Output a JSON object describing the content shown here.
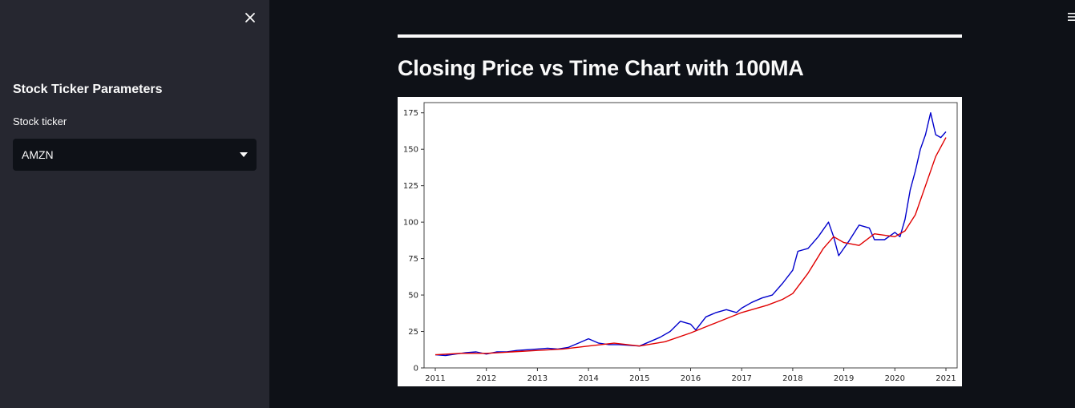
{
  "sidebar": {
    "heading": "Stock Ticker Parameters",
    "ticker_label": "Stock ticker",
    "ticker_value": "AMZN",
    "close_icon": "close-icon",
    "dropdown_icon": "caret-down-icon"
  },
  "header": {
    "menu_icon": "hamburger-icon"
  },
  "main": {
    "title": "Closing Price vs Time Chart with 100MA"
  },
  "colors": {
    "background": "#0e1117",
    "sidebar": "#262730",
    "close_series": "#0000cc",
    "ma_series": "#e00000"
  },
  "chart_data": {
    "type": "line",
    "title": "",
    "xlabel": "",
    "ylabel": "",
    "xlim": [
      2010.78,
      2021.22
    ],
    "ylim": [
      0,
      182
    ],
    "xticks": [
      2011,
      2012,
      2013,
      2014,
      2015,
      2016,
      2017,
      2018,
      2019,
      2020,
      2021
    ],
    "yticks": [
      0,
      25,
      50,
      75,
      100,
      125,
      150,
      175
    ],
    "grid": false,
    "legend": "none",
    "series": [
      {
        "color": "#0000cc",
        "x": [
          2011.0,
          2011.2,
          2011.4,
          2011.6,
          2011.8,
          2012.0,
          2012.2,
          2012.4,
          2012.6,
          2012.8,
          2013.0,
          2013.2,
          2013.4,
          2013.6,
          2013.8,
          2014.0,
          2014.2,
          2014.4,
          2014.6,
          2014.8,
          2015.0,
          2015.2,
          2015.4,
          2015.6,
          2015.8,
          2016.0,
          2016.1,
          2016.3,
          2016.5,
          2016.7,
          2016.9,
          2017.0,
          2017.2,
          2017.4,
          2017.6,
          2017.8,
          2018.0,
          2018.1,
          2018.3,
          2018.5,
          2018.7,
          2018.8,
          2018.9,
          2019.0,
          2019.1,
          2019.3,
          2019.5,
          2019.6,
          2019.8,
          2020.0,
          2020.1,
          2020.2,
          2020.3,
          2020.4,
          2020.5,
          2020.6,
          2020.7,
          2020.8,
          2020.9,
          2021.0
        ],
        "y": [
          9,
          8.5,
          9.5,
          10.5,
          11,
          9.5,
          11,
          11,
          12,
          12.5,
          13,
          13.5,
          13,
          14,
          17,
          20,
          17,
          16,
          16,
          15.5,
          15,
          18,
          21,
          25,
          32,
          30,
          26,
          35,
          38,
          40,
          38,
          41,
          45,
          48,
          50,
          58,
          67,
          80,
          82,
          90,
          100,
          90,
          77,
          82,
          87,
          98,
          96,
          88,
          88,
          93,
          90,
          102,
          122,
          135,
          150,
          160,
          175,
          160,
          158,
          162
        ]
      },
      {
        "color": "#e00000",
        "x": [
          2011.0,
          2011.5,
          2012.0,
          2012.5,
          2013.0,
          2013.5,
          2014.0,
          2014.5,
          2015.0,
          2015.5,
          2016.0,
          2016.5,
          2017.0,
          2017.5,
          2017.8,
          2018.0,
          2018.3,
          2018.6,
          2018.8,
          2019.0,
          2019.3,
          2019.6,
          2020.0,
          2020.2,
          2020.4,
          2020.6,
          2020.8,
          2021.0
        ],
        "y": [
          9,
          10,
          10,
          11,
          12,
          13,
          15,
          17,
          15,
          18,
          24,
          31,
          38,
          43,
          47,
          51,
          65,
          82,
          90,
          86,
          84,
          92,
          90,
          94,
          105,
          125,
          145,
          158
        ]
      }
    ]
  }
}
